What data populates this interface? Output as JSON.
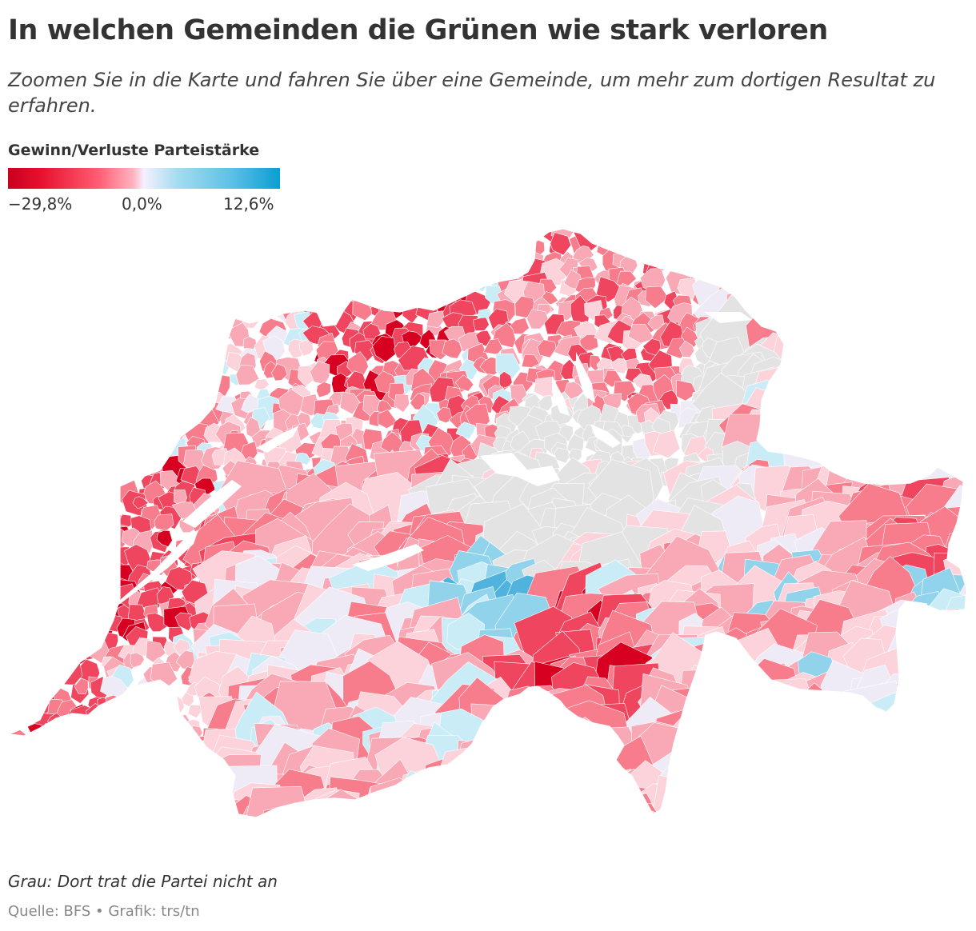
{
  "header": {
    "title": "In welchen Gemeinden die Grünen wie stark verloren",
    "subtitle": "Zoomen Sie in die Karte und fahren Sie über eine Gemeinde, um mehr zum dortigen Resultat zu erfahren."
  },
  "legend": {
    "title": "Gewinn/Verluste Parteistärke",
    "min_label": "−29,8%",
    "mid_label": "0,0%",
    "max_label": "12,6%",
    "min_value": -29.8,
    "mid_value": 0.0,
    "max_value": 12.6,
    "colors": [
      "#c8001e",
      "#e8102e",
      "#ff5c72",
      "#ffb3c0",
      "#f5f0ff",
      "#a6ddf0",
      "#5ec0e6",
      "#0a9ed2"
    ]
  },
  "map": {
    "no_data_color": "#e3e3e3",
    "background_color": "#ffffff"
  },
  "footer": {
    "note": "Grau: Dort trat die Partei nicht an",
    "source": "Quelle: BFS • Grafik: trs/tn"
  }
}
